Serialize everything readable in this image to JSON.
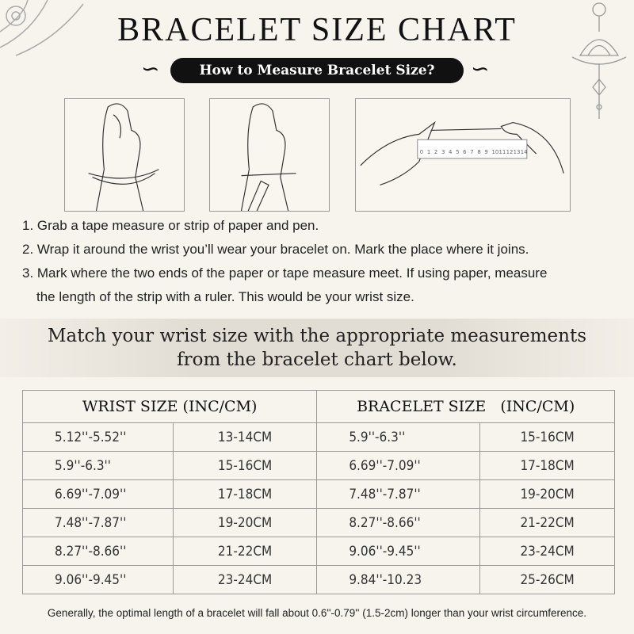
{
  "title": "BRACELET SIZE CHART",
  "subtitle": "How to Measure Bracelet Size?",
  "icons": [
    "lotus-ornament-icon",
    "swirl-left-icon",
    "swirl-right-icon",
    "hanging-lotus-ornament-icon"
  ],
  "illustrations": [
    {
      "name": "wrap-tape-illustration"
    },
    {
      "name": "mark-paper-illustration"
    },
    {
      "name": "ruler-measure-illustration",
      "ruler_numbers": [
        "0",
        "1",
        "2",
        "3",
        "4",
        "5",
        "6",
        "7",
        "8",
        "9",
        "10",
        "11",
        "12",
        "13",
        "14"
      ]
    }
  ],
  "steps": [
    "1. Grab a tape measure or strip of paper and pen.",
    "2. Wrap it around the wrist you’ll wear your bracelet on. Mark the place where it joins.",
    "3. Mark where the two ends of the paper or tape measure meet. If using paper, measure",
    "the length of the strip with a ruler. This would be your wrist size."
  ],
  "banner": {
    "line1": "Match your wrist size with the appropriate measurements",
    "line2": "from the bracelet chart below."
  },
  "table": {
    "headers": [
      "WRIST SIZE (INC/CM)",
      "BRACELET SIZE   (INC/CM)"
    ],
    "rows": [
      [
        "5.12''-5.52''",
        "13-14CM",
        "5.9''-6.3''",
        "15-16CM"
      ],
      [
        "5.9''-6.3''",
        "15-16CM",
        "6.69''-7.09''",
        "17-18CM"
      ],
      [
        "6.69''-7.09''",
        "17-18CM",
        "7.48''-7.87''",
        "19-20CM"
      ],
      [
        "7.48''-7.87''",
        "19-20CM",
        "8.27''-8.66''",
        "21-22CM"
      ],
      [
        "8.27''-8.66''",
        "21-22CM",
        "9.06''-9.45''",
        "23-24CM"
      ],
      [
        "9.06''-9.45''",
        "23-24CM",
        "9.84''-10.23",
        "25-26CM"
      ]
    ]
  },
  "footer": "Generally, the optimal length of a bracelet will fall about 0.6''-0.79'' (1.5-2cm) longer than your wrist circumference."
}
